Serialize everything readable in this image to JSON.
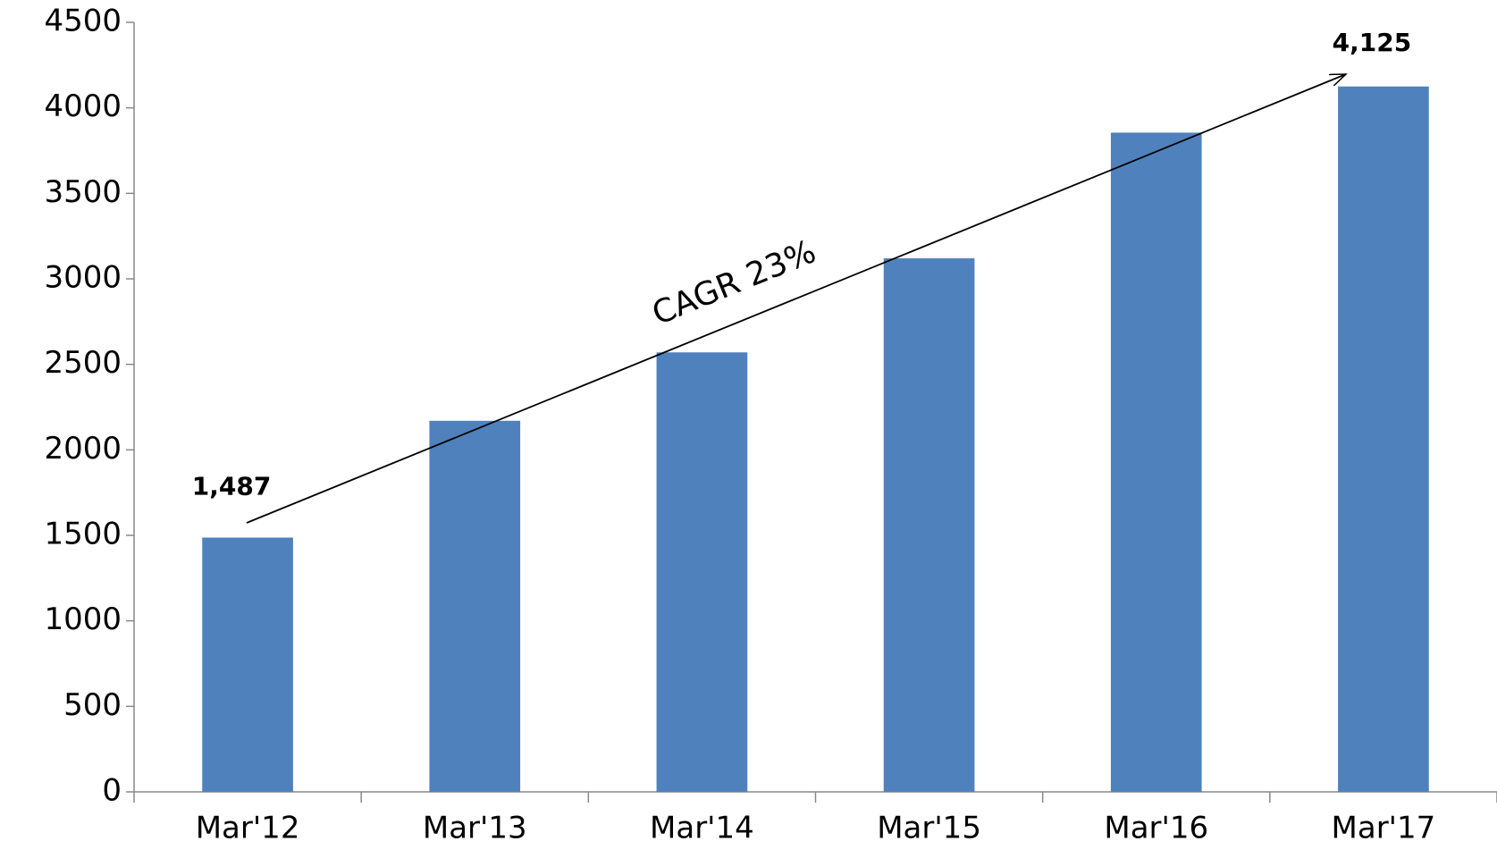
{
  "chart_data": {
    "type": "bar",
    "categories": [
      "Mar'12",
      "Mar'13",
      "Mar'14",
      "Mar'15",
      "Mar'16",
      "Mar'17"
    ],
    "values": [
      1487,
      2170,
      2570,
      3120,
      3855,
      4125
    ],
    "value_labels": [
      "1,487",
      null,
      null,
      null,
      null,
      "4,125"
    ],
    "color": "#4f81bd",
    "ylim": [
      0,
      4500
    ],
    "yticks": [
      0,
      500,
      1000,
      1500,
      2000,
      2500,
      3000,
      3500,
      4000,
      4500
    ],
    "grid": false,
    "annotation": "CAGR  23%"
  }
}
